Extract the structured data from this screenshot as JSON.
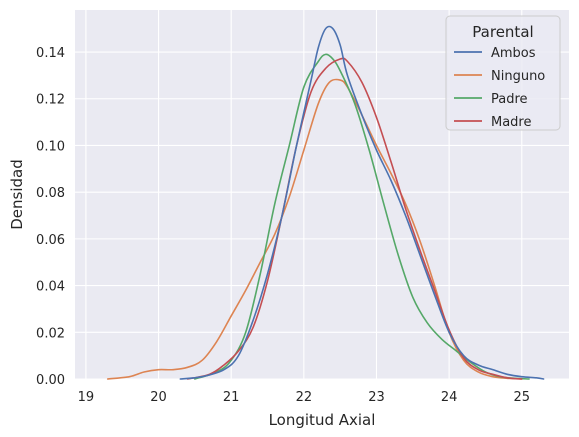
{
  "chart_data": {
    "type": "line",
    "title": "",
    "xlabel": "Longitud Axial",
    "ylabel": "Densidad",
    "xlim": [
      18.85,
      25.65
    ],
    "ylim": [
      0,
      0.158
    ],
    "xticks": [
      19,
      20,
      21,
      22,
      23,
      24,
      25
    ],
    "yticks": [
      0.0,
      0.02,
      0.04,
      0.06,
      0.08,
      0.1,
      0.12,
      0.14
    ],
    "xtick_labels": [
      "19",
      "20",
      "21",
      "22",
      "23",
      "24",
      "25"
    ],
    "ytick_labels": [
      "0.00",
      "0.02",
      "0.04",
      "0.06",
      "0.08",
      "0.10",
      "0.12",
      "0.14"
    ],
    "grid": true,
    "legend": {
      "title": "Parental",
      "position": "top-right"
    },
    "series": [
      {
        "name": "Ambos",
        "color": "#4c72b0",
        "x": [
          20.3,
          20.6,
          20.9,
          21.1,
          21.3,
          21.5,
          21.7,
          21.9,
          22.1,
          22.2,
          22.3,
          22.4,
          22.5,
          22.6,
          22.8,
          23.0,
          23.2,
          23.4,
          23.6,
          23.8,
          24.0,
          24.2,
          24.4,
          24.6,
          24.8,
          25.0,
          25.2,
          25.3
        ],
        "y": [
          0.0,
          0.001,
          0.004,
          0.01,
          0.025,
          0.045,
          0.07,
          0.1,
          0.128,
          0.142,
          0.15,
          0.15,
          0.143,
          0.13,
          0.113,
          0.098,
          0.085,
          0.07,
          0.053,
          0.036,
          0.02,
          0.01,
          0.006,
          0.004,
          0.002,
          0.001,
          0.0005,
          0.0
        ]
      },
      {
        "name": "Ninguno",
        "color": "#dd8452",
        "x": [
          19.3,
          19.6,
          19.8,
          20.0,
          20.2,
          20.4,
          20.6,
          20.8,
          21.0,
          21.2,
          21.4,
          21.6,
          21.8,
          22.0,
          22.2,
          22.35,
          22.5,
          22.6,
          22.8,
          23.0,
          23.2,
          23.4,
          23.6,
          23.8,
          24.0,
          24.2,
          24.4,
          24.6,
          24.8,
          25.0
        ],
        "y": [
          0.0,
          0.001,
          0.003,
          0.004,
          0.004,
          0.005,
          0.008,
          0.016,
          0.027,
          0.038,
          0.05,
          0.062,
          0.078,
          0.098,
          0.118,
          0.127,
          0.128,
          0.125,
          0.113,
          0.1,
          0.088,
          0.075,
          0.059,
          0.04,
          0.02,
          0.008,
          0.003,
          0.001,
          0.0003,
          0.0
        ]
      },
      {
        "name": "Padre",
        "color": "#55a868",
        "x": [
          20.5,
          20.8,
          21.0,
          21.2,
          21.4,
          21.6,
          21.8,
          22.0,
          22.2,
          22.3,
          22.4,
          22.5,
          22.7,
          22.9,
          23.1,
          23.3,
          23.5,
          23.7,
          23.9,
          24.1,
          24.3,
          24.5,
          24.7,
          24.9,
          25.1
        ],
        "y": [
          0.0,
          0.003,
          0.008,
          0.02,
          0.045,
          0.075,
          0.1,
          0.125,
          0.136,
          0.139,
          0.137,
          0.132,
          0.118,
          0.098,
          0.075,
          0.053,
          0.035,
          0.024,
          0.017,
          0.012,
          0.007,
          0.003,
          0.001,
          0.0003,
          0.0
        ]
      },
      {
        "name": "Madre",
        "color": "#c44e52",
        "x": [
          20.4,
          20.7,
          20.9,
          21.1,
          21.3,
          21.5,
          21.7,
          21.9,
          22.1,
          22.3,
          22.5,
          22.6,
          22.8,
          23.0,
          23.2,
          23.4,
          23.6,
          23.8,
          24.0,
          24.2,
          24.4,
          24.6,
          24.8,
          25.0
        ],
        "y": [
          0.0,
          0.002,
          0.006,
          0.012,
          0.022,
          0.042,
          0.07,
          0.1,
          0.123,
          0.133,
          0.137,
          0.136,
          0.127,
          0.112,
          0.093,
          0.073,
          0.055,
          0.038,
          0.021,
          0.009,
          0.004,
          0.002,
          0.0005,
          0.0
        ]
      }
    ]
  }
}
